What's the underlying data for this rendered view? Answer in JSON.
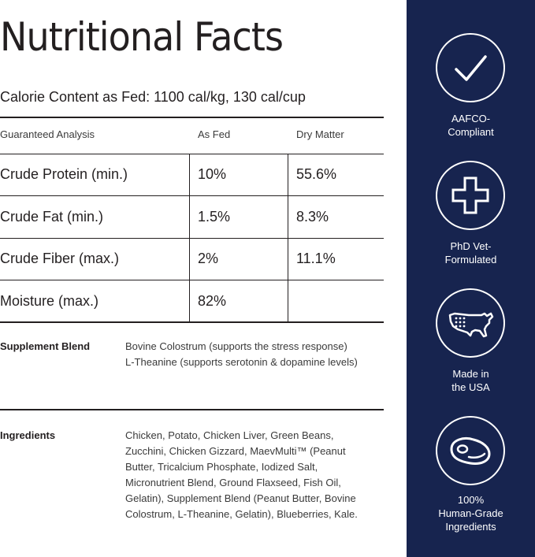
{
  "title": "Nutritional Facts",
  "calorie_content": "Calorie Content as Fed: 1100 cal/kg, 130 cal/cup",
  "table": {
    "headers": [
      "Guaranteed Analysis",
      "As Fed",
      "Dry Matter"
    ],
    "rows": [
      {
        "name": "Crude Protein (min.)",
        "as_fed": "10%",
        "dry_matter": "55.6%"
      },
      {
        "name": "Crude Fat (min.)",
        "as_fed": "1.5%",
        "dry_matter": "8.3%"
      },
      {
        "name": "Crude Fiber (max.)",
        "as_fed": "2%",
        "dry_matter": "11.1%"
      },
      {
        "name": "Moisture (max.)",
        "as_fed": "82%",
        "dry_matter": ""
      }
    ]
  },
  "supplement": {
    "label": "Supplement Blend",
    "lines": [
      "Bovine Colostrum (supports the stress response)",
      "L-Theanine (supports serotonin & dopamine levels)"
    ]
  },
  "ingredients": {
    "label": "Ingredients",
    "lines": [
      "Chicken, Potato, Chicken Liver, Green Beans,",
      "Zucchini, Chicken Gizzard, MaevMulti™ (Peanut",
      "Butter, Tricalcium Phosphate, Iodized Salt,",
      "Micronutrient Blend, Ground Flaxseed, Fish Oil,",
      "Gelatin), Supplement Blend (Peanut Butter, Bovine",
      "Colostrum, L-Theanine, Gelatin), Blueberries, Kale."
    ]
  },
  "badges": [
    {
      "icon": "checkmark-icon",
      "lines": [
        "AAFCO-",
        "Compliant"
      ]
    },
    {
      "icon": "medical-cross-icon",
      "lines": [
        "PhD Vet-",
        "Formulated"
      ]
    },
    {
      "icon": "usa-map-icon",
      "lines": [
        "Made in",
        "the USA"
      ]
    },
    {
      "icon": "steak-icon",
      "lines": [
        "100%",
        "Human-Grade",
        "Ingredients"
      ]
    }
  ],
  "colors": {
    "sidebar": "#17244f",
    "text": "#231f20",
    "badge_text": "#ffffff"
  }
}
